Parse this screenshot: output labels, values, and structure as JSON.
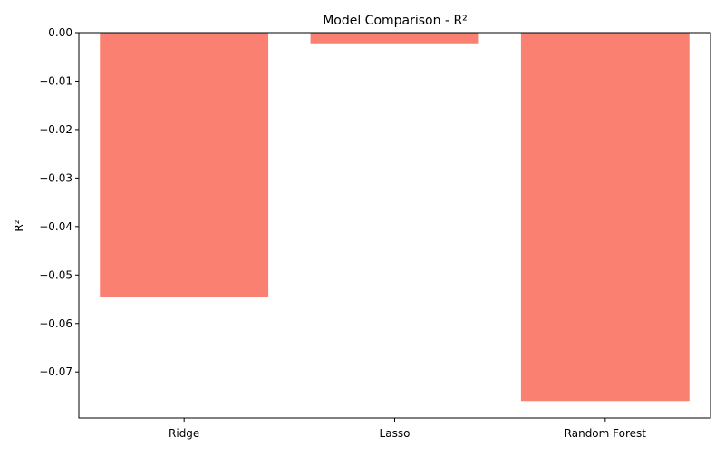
{
  "chart_data": {
    "type": "bar",
    "title": "Model Comparison - R²",
    "xlabel": "",
    "ylabel": "R²",
    "categories": [
      "Ridge",
      "Lasso",
      "Random Forest"
    ],
    "values": [
      -0.0545,
      -0.0022,
      -0.076
    ],
    "ylim": [
      -0.0795,
      0.0
    ],
    "yticks": [
      0.0,
      -0.01,
      -0.02,
      -0.03,
      -0.04,
      -0.05,
      -0.06,
      -0.07
    ],
    "ytick_labels": [
      "0.00",
      "−0.01",
      "−0.02",
      "−0.03",
      "−0.04",
      "−0.05",
      "−0.06",
      "−0.07"
    ],
    "bar_color": "#fa8072",
    "grid": false,
    "legend": "none"
  }
}
